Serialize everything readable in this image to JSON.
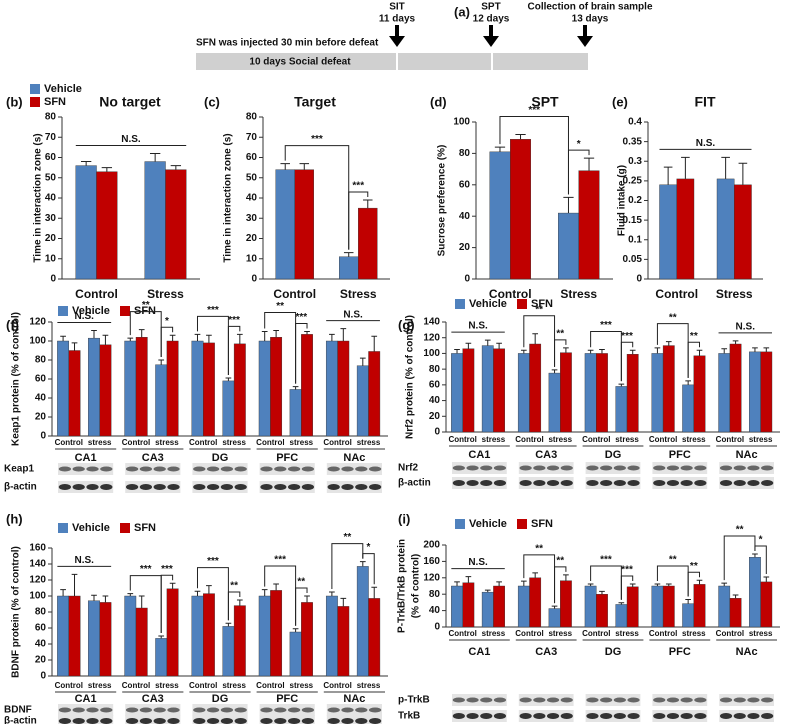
{
  "panel_a": {
    "label": "(a)",
    "events": [
      {
        "name": "SIT",
        "time": "11 days"
      },
      {
        "name": "SPT",
        "time": "12 days"
      },
      {
        "name": "Collection of brain sample",
        "time": "13 days"
      }
    ],
    "injection_note": "SFN was injected  30 min before defeat",
    "defeat_label": "10 days Social defeat"
  },
  "chart_data": [
    {
      "type": "bar",
      "panel": "(b)",
      "title": "No target",
      "y_label": "Time in interaction zone (s)",
      "categories": [
        "Control",
        "Stress"
      ],
      "series": [
        {
          "name": "Vehicle",
          "color": "#4f81bd",
          "values": [
            56,
            58
          ],
          "errors": [
            2,
            4
          ]
        },
        {
          "name": "SFN",
          "color": "#c00000",
          "values": [
            53,
            54
          ],
          "errors": [
            2,
            2
          ]
        }
      ],
      "ylim": [
        0,
        80
      ],
      "yticks": [
        0,
        10,
        20,
        30,
        40,
        50,
        60,
        70,
        80
      ],
      "annotations": [
        "N.S."
      ]
    },
    {
      "type": "bar",
      "panel": "(c)",
      "title": "Target",
      "y_label": "Time in interaction zone (s)",
      "categories": [
        "Control",
        "Stress"
      ],
      "series": [
        {
          "color": "#4f81bd",
          "values": [
            54,
            11
          ],
          "errors": [
            3,
            2
          ]
        },
        {
          "color": "#c00000",
          "values": [
            54,
            35
          ],
          "errors": [
            3,
            4
          ]
        }
      ],
      "ylim": [
        0,
        80
      ],
      "yticks": [
        0,
        10,
        20,
        30,
        40,
        50,
        60,
        70,
        80
      ],
      "annotations": [
        "***",
        "***"
      ]
    },
    {
      "type": "bar",
      "panel": "(d)",
      "title": "SPT",
      "y_label": "Sucrose preference (%)",
      "categories": [
        "Control",
        "Stress"
      ],
      "series": [
        {
          "color": "#4f81bd",
          "values": [
            81,
            42
          ],
          "errors": [
            3,
            10
          ]
        },
        {
          "color": "#c00000",
          "values": [
            89,
            69
          ],
          "errors": [
            3,
            8
          ]
        }
      ],
      "ylim": [
        0,
        100
      ],
      "yticks": [
        0,
        20,
        40,
        60,
        80,
        100
      ],
      "annotations": [
        "***",
        "*"
      ]
    },
    {
      "type": "bar",
      "panel": "(e)",
      "title": "FIT",
      "y_label": "Fluid intake (g)",
      "categories": [
        "Control",
        "Stress"
      ],
      "series": [
        {
          "color": "#4f81bd",
          "values": [
            0.24,
            0.255
          ],
          "errors": [
            0.045,
            0.055
          ]
        },
        {
          "color": "#c00000",
          "values": [
            0.255,
            0.24
          ],
          "errors": [
            0.055,
            0.055
          ]
        }
      ],
      "ylim": [
        0,
        0.4
      ],
      "yticks": [
        0,
        0.05,
        0.1,
        0.15,
        0.2,
        0.25,
        0.3,
        0.35,
        0.4
      ],
      "annotations": [
        "N.S."
      ]
    },
    {
      "type": "bar",
      "panel": "(f)",
      "y_label": "Keap1 protein (% of control)",
      "categories": [
        "Control",
        "stress",
        "Control",
        "stress",
        "Control",
        "stress",
        "Control",
        "stress",
        "Control",
        "stress"
      ],
      "groups": [
        "CA1",
        "CA3",
        "DG",
        "PFC",
        "NAc"
      ],
      "series": [
        {
          "name": "Vehicle",
          "color": "#4f81bd",
          "values": [
            100,
            103,
            100,
            75,
            100,
            58,
            100,
            49,
            100,
            74
          ],
          "errors": [
            5,
            8,
            3,
            5,
            7,
            3,
            10,
            3,
            7,
            8
          ]
        },
        {
          "name": "SFN",
          "color": "#c00000",
          "values": [
            90,
            96,
            104,
            100,
            98,
            97,
            104,
            107,
            100,
            89
          ],
          "errors": [
            8,
            10,
            8,
            6,
            8,
            10,
            7,
            3,
            13,
            16
          ]
        }
      ],
      "ylim": [
        0,
        120
      ],
      "yticks": [
        0,
        20,
        40,
        60,
        80,
        100,
        120
      ],
      "annotations": [
        "N.S.",
        "**",
        "*",
        "***",
        "***",
        "**",
        "***",
        "N.S."
      ],
      "blot_labels": [
        "Keap1",
        "β-actin"
      ]
    },
    {
      "type": "bar",
      "panel": "(g)",
      "y_label": "Nrf2 protein (% of control)",
      "categories": [
        "Control",
        "stress",
        "Control",
        "stress",
        "Control",
        "stress",
        "Control",
        "stress",
        "Control",
        "stress"
      ],
      "groups": [
        "CA1",
        "CA3",
        "DG",
        "PFC",
        "NAc"
      ],
      "series": [
        {
          "name": "Vehicle",
          "color": "#4f81bd",
          "values": [
            100,
            110,
            100,
            75,
            100,
            58,
            100,
            60,
            100,
            102
          ],
          "errors": [
            5,
            7,
            4,
            4,
            4,
            3,
            7,
            5,
            6,
            5
          ]
        },
        {
          "name": "SFN",
          "color": "#c00000",
          "values": [
            106,
            106,
            112,
            101,
            100,
            99,
            110,
            97,
            112,
            102
          ],
          "errors": [
            7,
            7,
            13,
            6,
            5,
            5,
            5,
            7,
            4,
            5
          ]
        }
      ],
      "ylim": [
        0,
        140
      ],
      "yticks": [
        0,
        20,
        40,
        60,
        80,
        100,
        120,
        140
      ],
      "annotations": [
        "N.S.",
        "**",
        "**",
        "***",
        "***",
        "**",
        "**",
        "N.S."
      ],
      "blot_labels": [
        "Nrf2",
        "β-actin"
      ]
    },
    {
      "type": "bar",
      "panel": "(h)",
      "y_label": "BDNF protein (% of control)",
      "categories": [
        "Control",
        "stress",
        "Control",
        "stress",
        "Control",
        "stress",
        "Control",
        "stress",
        "Control",
        "stress"
      ],
      "groups": [
        "CA1",
        "CA3",
        "DG",
        "PFC",
        "NAc"
      ],
      "series": [
        {
          "name": "Vehicle",
          "color": "#4f81bd",
          "values": [
            100,
            94,
            100,
            47,
            100,
            62,
            100,
            55,
            100,
            137
          ],
          "errors": [
            8,
            7,
            3,
            3,
            6,
            4,
            8,
            4,
            5,
            6
          ]
        },
        {
          "name": "SFN",
          "color": "#c00000",
          "values": [
            100,
            92,
            85,
            109,
            103,
            88,
            107,
            92,
            87,
            97
          ],
          "errors": [
            27,
            8,
            15,
            7,
            10,
            7,
            8,
            8,
            10,
            14
          ]
        }
      ],
      "ylim": [
        0,
        160
      ],
      "yticks": [
        0,
        20,
        40,
        60,
        80,
        100,
        120,
        140,
        160
      ],
      "annotations": [
        "N.S.",
        "***",
        "***",
        "***",
        "**",
        "***",
        "**",
        "**",
        "*"
      ],
      "blot_labels": [
        "BDNF",
        "β-actin"
      ]
    },
    {
      "type": "bar",
      "panel": "(i)",
      "y_label": [
        "P-TrkB/TrkB  protein",
        "(% of control)"
      ],
      "categories": [
        "Control",
        "stress",
        "Control",
        "stress",
        "Control",
        "stress",
        "Control",
        "stress",
        "Control",
        "stress"
      ],
      "groups": [
        "CA1",
        "CA3",
        "DG",
        "PFC",
        "NAc"
      ],
      "series": [
        {
          "name": "Vehicle",
          "color": "#4f81bd",
          "values": [
            100,
            85,
            100,
            45,
            100,
            55,
            100,
            57,
            100,
            170
          ],
          "errors": [
            10,
            5,
            12,
            6,
            5,
            4,
            5,
            10,
            7,
            8
          ]
        },
        {
          "name": "SFN",
          "color": "#c00000",
          "values": [
            108,
            100,
            120,
            113,
            80,
            98,
            100,
            104,
            70,
            110
          ],
          "errors": [
            15,
            10,
            12,
            14,
            7,
            7,
            5,
            10,
            8,
            12
          ]
        }
      ],
      "ylim": [
        0,
        200
      ],
      "yticks": [
        0,
        40,
        80,
        120,
        160,
        200
      ],
      "annotations": [
        "N.S.",
        "**",
        "**",
        "***",
        "***",
        "**",
        "**",
        "**",
        "*"
      ],
      "blot_labels": [
        "p-TrkB",
        "TrkB"
      ]
    }
  ]
}
